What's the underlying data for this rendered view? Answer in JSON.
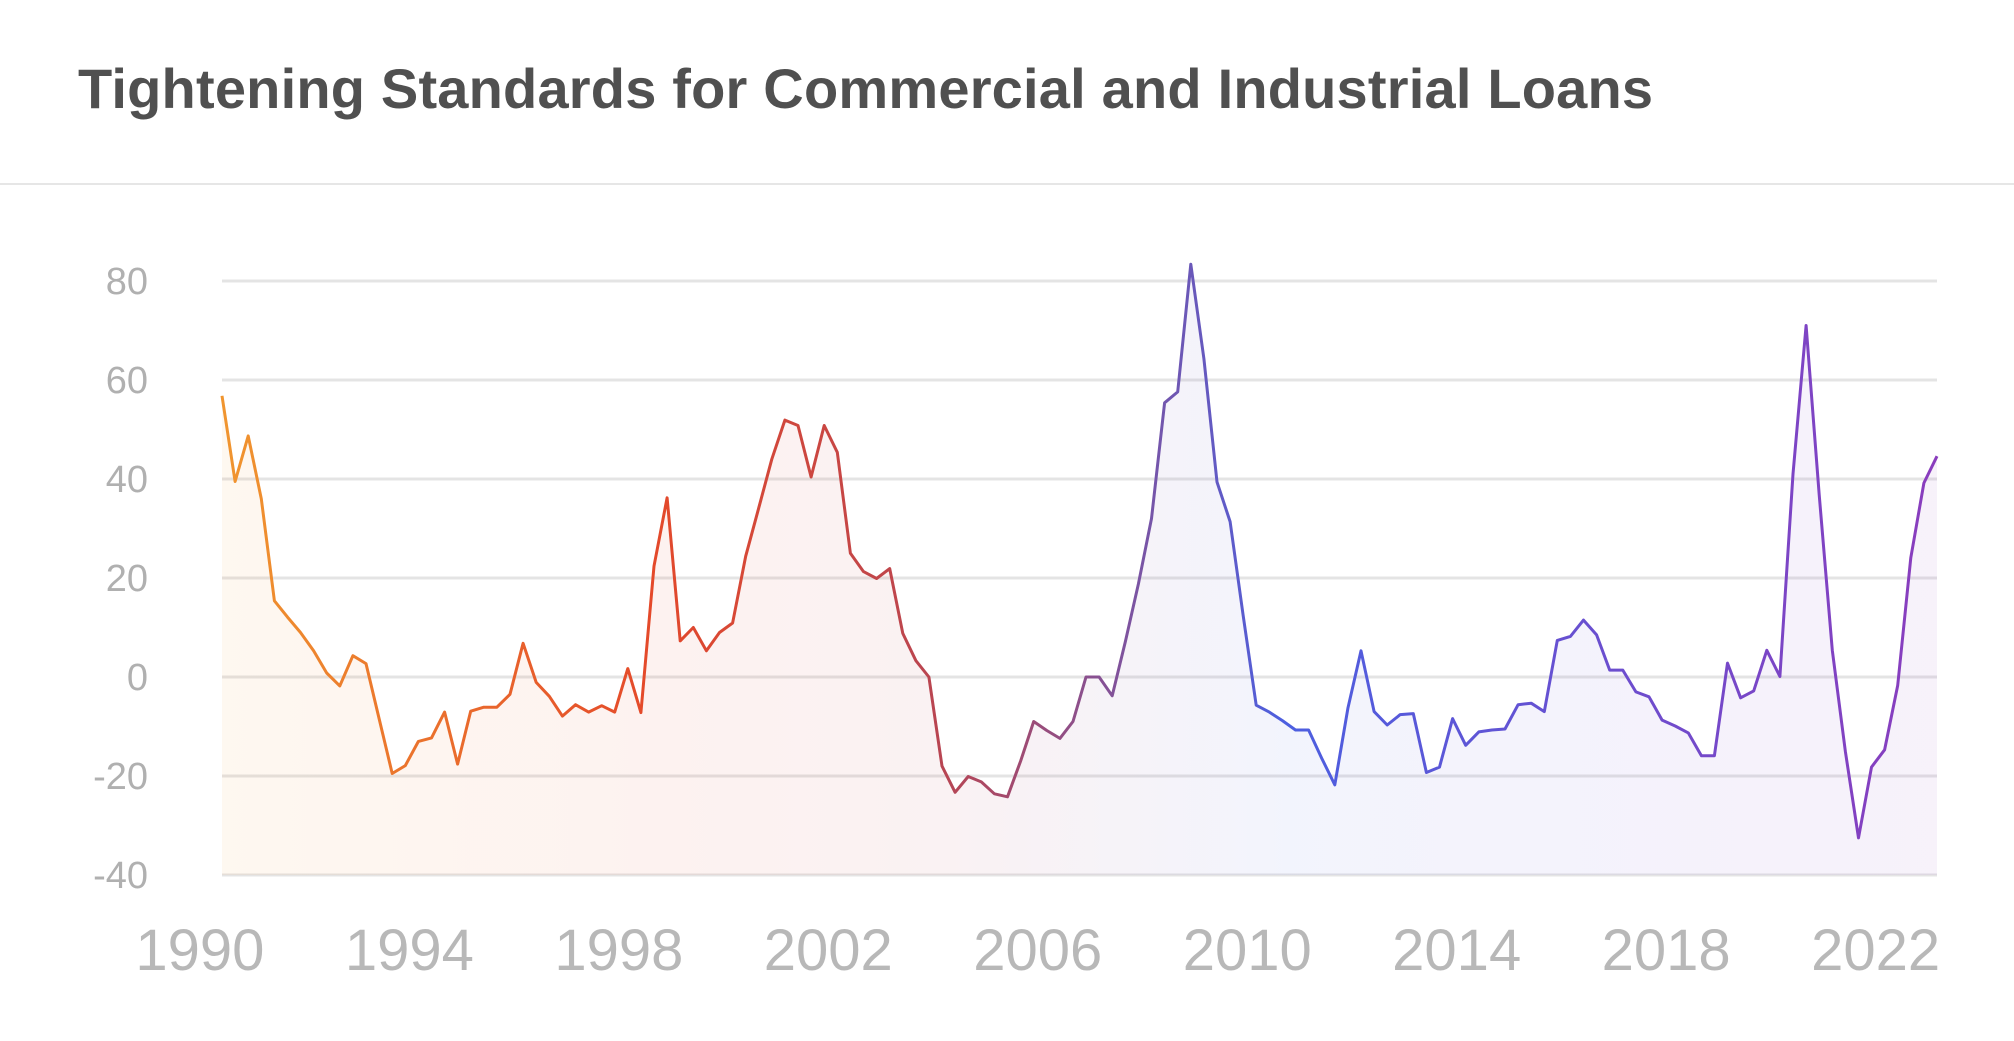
{
  "title": "Tightening Standards for Commercial and Industrial Loans",
  "chart_data": {
    "type": "area",
    "title": "Tightening Standards for Commercial and Industrial Loans",
    "xlabel": "",
    "ylabel": "",
    "ylim": [
      -40,
      80
    ],
    "xlim": [
      "1990-04",
      "2023-01"
    ],
    "grid": true,
    "yticks": [
      "80",
      "60",
      "40",
      "20",
      "0",
      "-20",
      "-40"
    ],
    "ytick_values": [
      80,
      60,
      40,
      20,
      0,
      -20,
      -40
    ],
    "xticks": [
      "1990",
      "1994",
      "1998",
      "2002",
      "2006",
      "2010",
      "2014",
      "2018",
      "2022"
    ],
    "line_gradient_colors": [
      "#f0952f",
      "#e4492a",
      "#b84552",
      "#4c5fe0",
      "#8a3dbd"
    ],
    "x": [
      "1990-04",
      "1990-07",
      "1990-10",
      "1991-01",
      "1991-04",
      "1991-07",
      "1991-10",
      "1992-01",
      "1992-04",
      "1992-07",
      "1992-10",
      "1993-01",
      "1993-04",
      "1993-07",
      "1993-10",
      "1994-01",
      "1994-04",
      "1994-07",
      "1994-10",
      "1995-01",
      "1995-04",
      "1995-07",
      "1995-10",
      "1996-01",
      "1996-04",
      "1996-07",
      "1996-10",
      "1997-01",
      "1997-04",
      "1997-07",
      "1997-10",
      "1998-01",
      "1998-04",
      "1998-07",
      "1998-10",
      "1999-01",
      "1999-04",
      "1999-07",
      "1999-10",
      "2000-01",
      "2000-04",
      "2000-07",
      "2000-10",
      "2001-01",
      "2001-04",
      "2001-07",
      "2001-10",
      "2002-01",
      "2002-04",
      "2002-07",
      "2002-10",
      "2003-01",
      "2003-04",
      "2003-07",
      "2003-10",
      "2004-01",
      "2004-04",
      "2004-07",
      "2004-10",
      "2005-01",
      "2005-04",
      "2005-07",
      "2005-10",
      "2006-01",
      "2006-04",
      "2006-07",
      "2006-10",
      "2007-01",
      "2007-04",
      "2007-07",
      "2007-10",
      "2008-01",
      "2008-04",
      "2008-07",
      "2008-10",
      "2009-01",
      "2009-04",
      "2009-07",
      "2009-10",
      "2010-01",
      "2010-04",
      "2010-07",
      "2010-10",
      "2011-01",
      "2011-04",
      "2011-07",
      "2011-10",
      "2012-01",
      "2012-04",
      "2012-07",
      "2012-10",
      "2013-01",
      "2013-04",
      "2013-07",
      "2013-10",
      "2014-01",
      "2014-04",
      "2014-07",
      "2014-10",
      "2015-01",
      "2015-04",
      "2015-07",
      "2015-10",
      "2016-01",
      "2016-04",
      "2016-07",
      "2016-10",
      "2017-01",
      "2017-04",
      "2017-07",
      "2017-10",
      "2018-01",
      "2018-04",
      "2018-07",
      "2018-10",
      "2019-01",
      "2019-04",
      "2019-07",
      "2019-10",
      "2020-01",
      "2020-04",
      "2020-07",
      "2020-10",
      "2021-01",
      "2021-04",
      "2021-07",
      "2021-10",
      "2022-01",
      "2022-04",
      "2022-07",
      "2022-10",
      "2023-01"
    ],
    "values": [
      56.8,
      39.5,
      48.7,
      36.0,
      15.4,
      12.1,
      9.0,
      5.3,
      0.8,
      -1.8,
      4.3,
      2.7,
      -8.4,
      -19.5,
      -17.9,
      -13.0,
      -12.3,
      -7.1,
      -17.6,
      -6.9,
      -6.1,
      -6.1,
      -3.5,
      6.8,
      -1.1,
      -3.9,
      -7.9,
      -5.6,
      -7.1,
      -5.8,
      -7.1,
      1.7,
      -7.2,
      22.4,
      36.2,
      7.3,
      10.0,
      5.3,
      9.0,
      10.9,
      24.4,
      34.2,
      44.0,
      51.9,
      50.8,
      40.4,
      50.8,
      45.4,
      25.0,
      21.3,
      19.9,
      21.9,
      8.8,
      3.3,
      0.0,
      -18.0,
      -23.3,
      -20.1,
      -21.2,
      -23.6,
      -24.2,
      -17.0,
      -9.0,
      -10.8,
      -12.4,
      -9.0,
      0.0,
      0.0,
      -3.8,
      7.1,
      18.8,
      32.0,
      55.4,
      57.6,
      83.4,
      64.3,
      39.4,
      31.4,
      12.5,
      -5.7,
      -7.1,
      -8.8,
      -10.7,
      -10.7,
      -16.4,
      -21.8,
      -6.3,
      5.3,
      -7.0,
      -9.7,
      -7.6,
      -7.4,
      -19.3,
      -18.2,
      -8.4,
      -13.8,
      -11.1,
      -10.7,
      -10.5,
      -5.6,
      -5.3,
      -7.0,
      7.4,
      8.2,
      11.5,
      8.5,
      1.4,
      1.4,
      -3.0,
      -4.0,
      -8.7,
      -9.9,
      -11.3,
      -15.9,
      -15.9,
      2.8,
      -4.2,
      -2.8,
      5.4,
      0.1,
      41.0,
      71.0,
      36.8,
      5.4,
      -15.1,
      -32.5,
      -18.2,
      -14.7,
      -1.7,
      24.1,
      39.2,
      44.6
    ]
  }
}
